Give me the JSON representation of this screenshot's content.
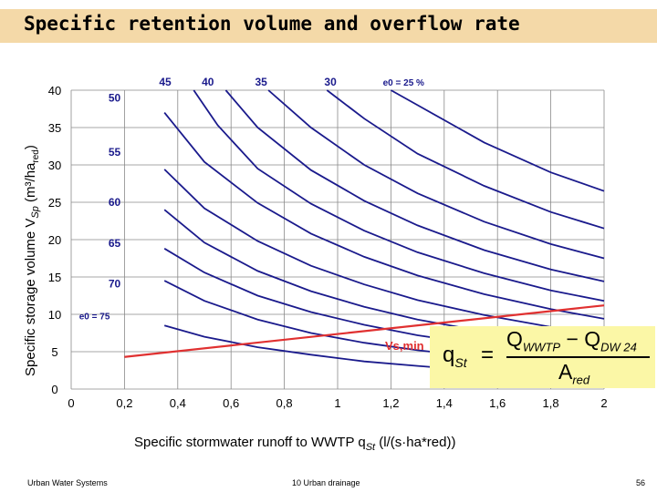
{
  "slide": {
    "title": "Specific retention volume and overflow rate",
    "footer_left": "Urban Water Systems",
    "footer_center": "10  Urban drainage",
    "footer_right": "56"
  },
  "formula": {
    "lhs": "q",
    "lhs_sub": "St",
    "equals": "=",
    "num_a": "Q",
    "num_a_sub": "WWTP",
    "minus": "−",
    "num_b": "Q",
    "num_b_sub": "DW 24",
    "den": "A",
    "den_sub": "red"
  },
  "chart_data": {
    "type": "line",
    "title": "",
    "xlabel": "Specific stormwater runoff to WWTP  q",
    "xlabel_sub": "St",
    "xlabel_unit": " (l/(s·ha*red))",
    "ylabel": "Specific storage volume  V",
    "ylabel_sub": "Sp",
    "ylabel_unit": " (m³/ha",
    "ylabel_unit_sub": "red",
    "ylabel_close": ")",
    "xlim": [
      0,
      2
    ],
    "ylim": [
      0,
      40
    ],
    "x_ticks": [
      "0",
      "0,2",
      "0,4",
      "0,6",
      "0,8",
      "1",
      "1,2",
      "1,4",
      "1,6",
      "1,8",
      "2"
    ],
    "y_ticks": [
      "0",
      "5",
      "10",
      "15",
      "20",
      "25",
      "30",
      "35",
      "40"
    ],
    "grid": true,
    "series_color": "#1a1a8c",
    "min_line_color": "#e03030",
    "series": [
      {
        "name": "75",
        "label": "e0 = 75",
        "x": [
          0.35,
          0.5,
          0.7,
          0.9,
          1.1,
          1.3,
          1.55
        ],
        "y": [
          8.5,
          7.0,
          5.6,
          4.6,
          3.7,
          3.1,
          2.4
        ]
      },
      {
        "name": "70",
        "label": "70",
        "x": [
          0.35,
          0.5,
          0.7,
          0.9,
          1.1,
          1.3,
          1.55,
          1.8,
          2.0
        ],
        "y": [
          14.5,
          11.8,
          9.3,
          7.5,
          6.2,
          5.2,
          4.2,
          3.4,
          2.9
        ]
      },
      {
        "name": "65",
        "label": "65",
        "x": [
          0.35,
          0.5,
          0.7,
          0.9,
          1.1,
          1.3,
          1.55,
          1.8,
          2.0
        ],
        "y": [
          18.8,
          15.6,
          12.5,
          10.3,
          8.6,
          7.2,
          5.9,
          4.8,
          4.2
        ]
      },
      {
        "name": "60",
        "label": "60",
        "x": [
          0.35,
          0.5,
          0.7,
          0.9,
          1.1,
          1.3,
          1.55,
          1.8,
          2.0
        ],
        "y": [
          24.0,
          19.6,
          15.8,
          13.1,
          11.0,
          9.3,
          7.7,
          6.4,
          5.6
        ]
      },
      {
        "name": "55",
        "label": "55",
        "x": [
          0.35,
          0.5,
          0.7,
          0.9,
          1.1,
          1.3,
          1.55,
          1.8,
          2.0
        ],
        "y": [
          29.4,
          24.2,
          19.8,
          16.5,
          14.0,
          11.9,
          9.9,
          8.3,
          7.3
        ]
      },
      {
        "name": "50",
        "label": "50",
        "x": [
          0.35,
          0.5,
          0.7,
          0.9,
          1.1,
          1.3,
          1.55,
          1.8,
          2.0
        ],
        "y": [
          37.0,
          30.4,
          24.9,
          20.8,
          17.7,
          15.2,
          12.7,
          10.7,
          9.4
        ]
      },
      {
        "name": "45",
        "label": "45",
        "x": [
          0.46,
          0.55,
          0.7,
          0.9,
          1.1,
          1.3,
          1.55,
          1.8,
          2.0
        ],
        "y": [
          40.0,
          35.3,
          29.5,
          24.8,
          21.2,
          18.3,
          15.5,
          13.2,
          11.8
        ]
      },
      {
        "name": "40",
        "label": "40",
        "x": [
          0.58,
          0.7,
          0.9,
          1.1,
          1.3,
          1.55,
          1.8,
          2.0
        ],
        "y": [
          40.0,
          35.0,
          29.3,
          25.2,
          21.9,
          18.6,
          16.0,
          14.4
        ]
      },
      {
        "name": "35",
        "label": "35",
        "x": [
          0.74,
          0.9,
          1.1,
          1.3,
          1.55,
          1.8,
          2.0
        ],
        "y": [
          40.0,
          35.0,
          30.0,
          26.2,
          22.4,
          19.4,
          17.5
        ]
      },
      {
        "name": "30",
        "label": "30",
        "x": [
          0.96,
          1.1,
          1.3,
          1.55,
          1.8,
          2.0
        ],
        "y": [
          40.0,
          36.2,
          31.5,
          27.2,
          23.7,
          21.5
        ]
      },
      {
        "name": "25",
        "label": "e0 = 25 %",
        "x": [
          1.2,
          1.3,
          1.55,
          1.8,
          2.0
        ],
        "y": [
          40.0,
          38.0,
          33.0,
          29.0,
          26.5
        ]
      }
    ],
    "min_line": {
      "name": "Vs,min",
      "x": [
        0.2,
        2.0
      ],
      "y": [
        4.3,
        11.2
      ]
    }
  }
}
